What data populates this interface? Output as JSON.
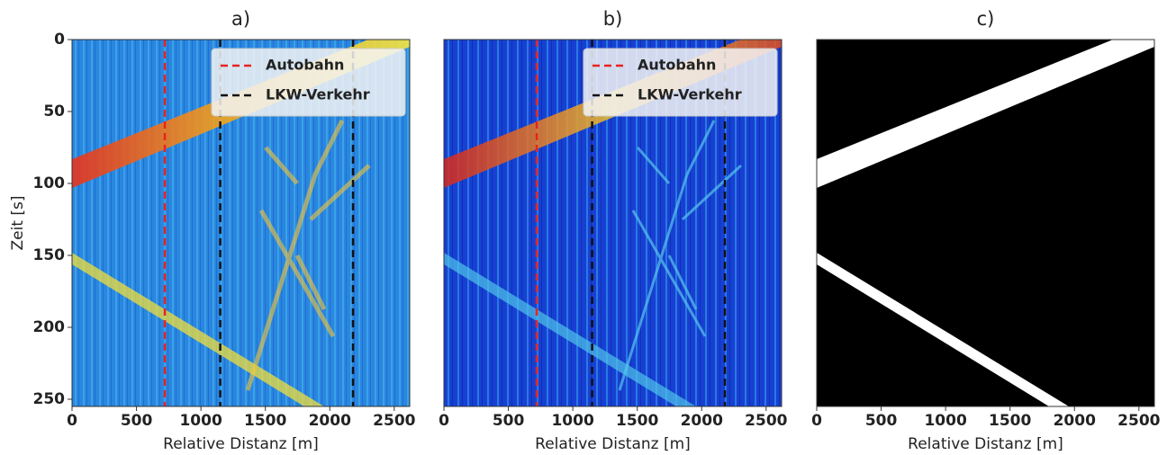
{
  "chart_data": [
    {
      "type": "heatmap",
      "title": "a)",
      "xlabel": "Relative Distanz [m]",
      "ylabel": "Zeit [s]",
      "xlim": [
        0,
        2620
      ],
      "ylim": [
        0,
        255
      ],
      "y_inverted": true,
      "xticks": [
        0,
        500,
        1000,
        1500,
        2000,
        2500
      ],
      "yticks": [
        0,
        50,
        100,
        150,
        200,
        250
      ],
      "legend": "upper right",
      "series": [
        {
          "name": "Autobahn",
          "color": "#e8231f",
          "x": [
            720
          ]
        },
        {
          "name": "LKW-Verkehr",
          "color": "#111111",
          "x": [
            1150,
            2180
          ]
        }
      ]
    },
    {
      "type": "heatmap",
      "title": "b)",
      "xlabel": "Relative Distanz [m]",
      "xlim": [
        0,
        2620
      ],
      "ylim": [
        0,
        255
      ],
      "y_inverted": true,
      "xticks": [
        0,
        500,
        1000,
        1500,
        2000,
        2500
      ],
      "legend": "upper right",
      "series": [
        {
          "name": "Autobahn",
          "color": "#e8231f",
          "x": [
            720
          ]
        },
        {
          "name": "LKW-Verkehr",
          "color": "#111111",
          "x": [
            1150,
            2180
          ]
        }
      ]
    },
    {
      "type": "heatmap",
      "title": "c)",
      "xlabel": "Relative Distanz [m]",
      "xlim": [
        0,
        2620
      ],
      "ylim": [
        0,
        255
      ],
      "y_inverted": true,
      "xticks": [
        0,
        500,
        1000,
        1500,
        2000,
        2500
      ]
    }
  ]
}
